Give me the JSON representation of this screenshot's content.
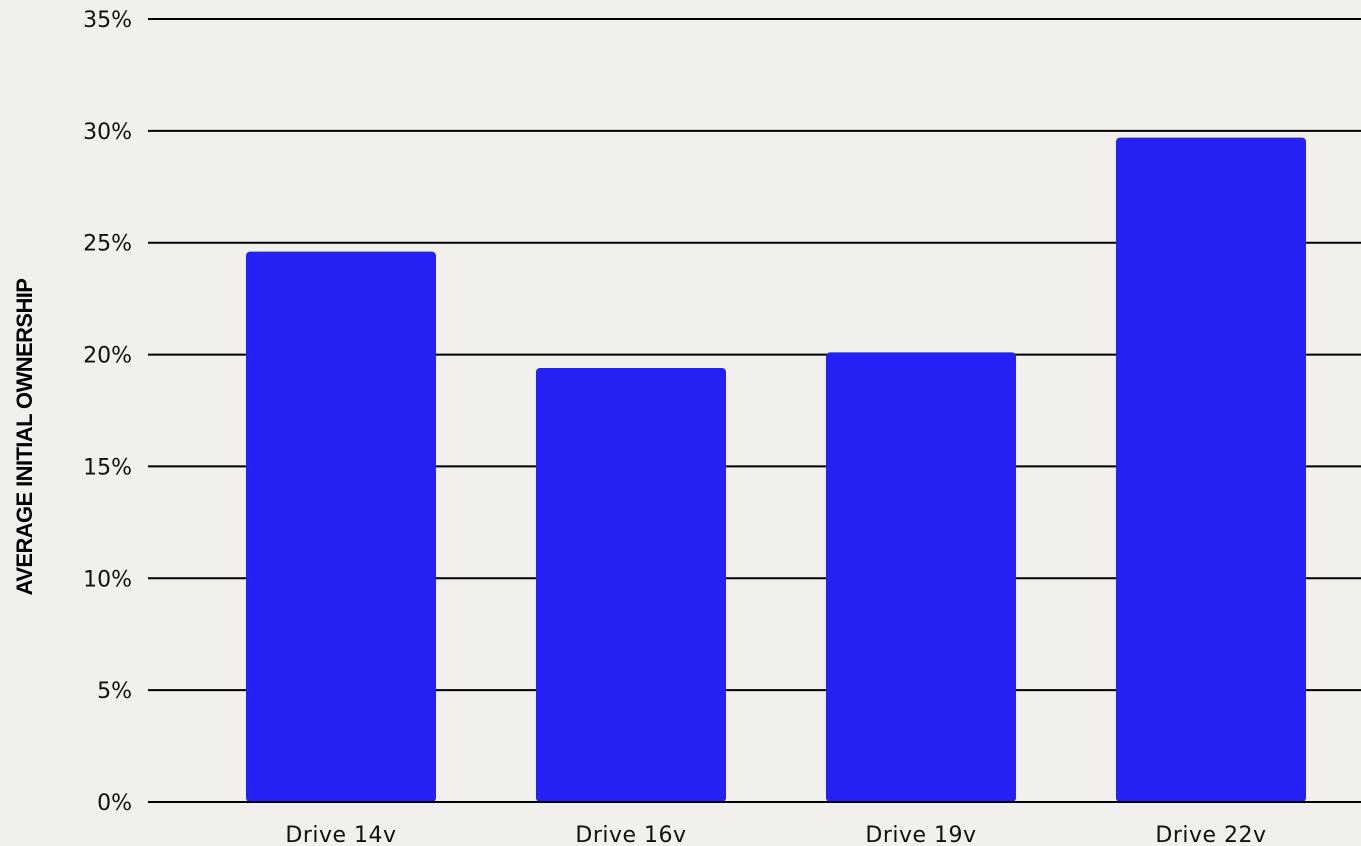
{
  "chart_data": {
    "type": "bar",
    "title": "",
    "xlabel": "",
    "ylabel": "AVERAGE INITIAL OWNERSHIP",
    "categories": [
      "Drive 14v",
      "Drive 16v",
      "Drive 19v",
      "Drive 22v"
    ],
    "values": [
      24.6,
      19.4,
      20.1,
      29.7
    ],
    "ylim": [
      0,
      35
    ],
    "yticks": [
      0,
      5,
      10,
      15,
      20,
      25,
      30,
      35
    ],
    "ytick_labels": [
      "0%",
      "5%",
      "10%",
      "15%",
      "20%",
      "25%",
      "30%",
      "35%"
    ],
    "grid": true,
    "legend": "none",
    "colors": {
      "bar": "#2521f5",
      "grid": "#000000",
      "background": "#f2f0ec"
    }
  }
}
